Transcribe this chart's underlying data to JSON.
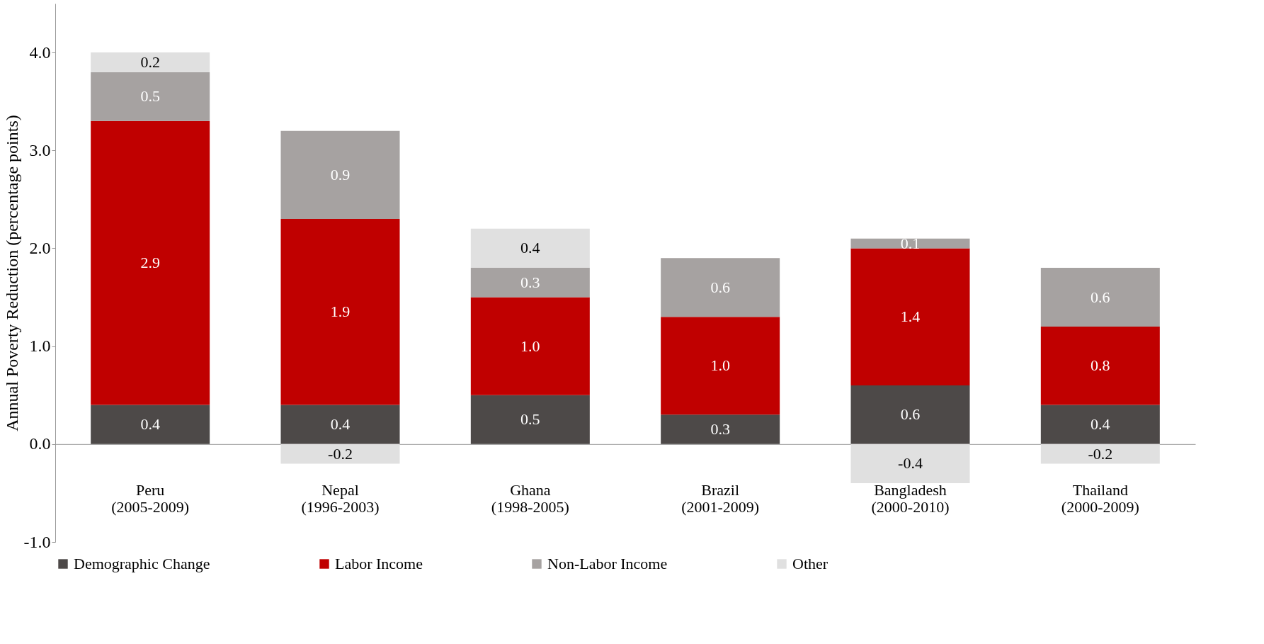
{
  "chart_data": {
    "type": "bar",
    "stacked": true,
    "ylabel": "Annual Poverty Reduction (percentage points)",
    "categories": [
      "Peru (2005-2009)",
      "Nepal (1996-2003)",
      "Ghana (1998-2005)",
      "Brazil (2001-2009)",
      "Bangladesh (2000-2010)",
      "Thailand (2000-2009)"
    ],
    "series": [
      {
        "name": "Demographic Change",
        "color": "#4d4948",
        "values": [
          0.4,
          0.4,
          0.5,
          0.3,
          0.6,
          0.4
        ],
        "value_labels": [
          "0.4",
          "0.4",
          "0.5",
          "0.3",
          "0.6",
          "0.4"
        ]
      },
      {
        "name": "Labor Income",
        "color": "#c00000",
        "values": [
          2.9,
          1.9,
          1.0,
          1.0,
          1.4,
          0.8
        ],
        "value_labels": [
          "2.9",
          "1.9",
          "1.0",
          "1.0",
          "1.4",
          "0.8"
        ]
      },
      {
        "name": "Non-Labor Income",
        "color": "#a6a2a1",
        "values": [
          0.5,
          0.9,
          0.3,
          0.6,
          0.1,
          0.6
        ],
        "value_labels": [
          "0.5",
          "0.9",
          "0.3",
          "0.6",
          "0.1",
          "0.6"
        ]
      },
      {
        "name": "Other",
        "color": "#e0e0e0",
        "values": [
          0.2,
          -0.2,
          0.4,
          null,
          -0.4,
          -0.2
        ],
        "value_labels": [
          "0.2",
          "-0.2",
          "0.4",
          null,
          "-0.4",
          "-0.2"
        ]
      }
    ],
    "ylim": [
      -1.0,
      4.5
    ],
    "yticks": [
      {
        "value": -1,
        "label": "-1.0"
      },
      {
        "value": 0,
        "label": "0.0"
      },
      {
        "value": 1,
        "label": "1.0"
      },
      {
        "value": 2,
        "label": "2.0"
      },
      {
        "value": 3,
        "label": "3.0"
      },
      {
        "value": 4,
        "label": "4.0"
      }
    ],
    "legend": "bottom"
  }
}
